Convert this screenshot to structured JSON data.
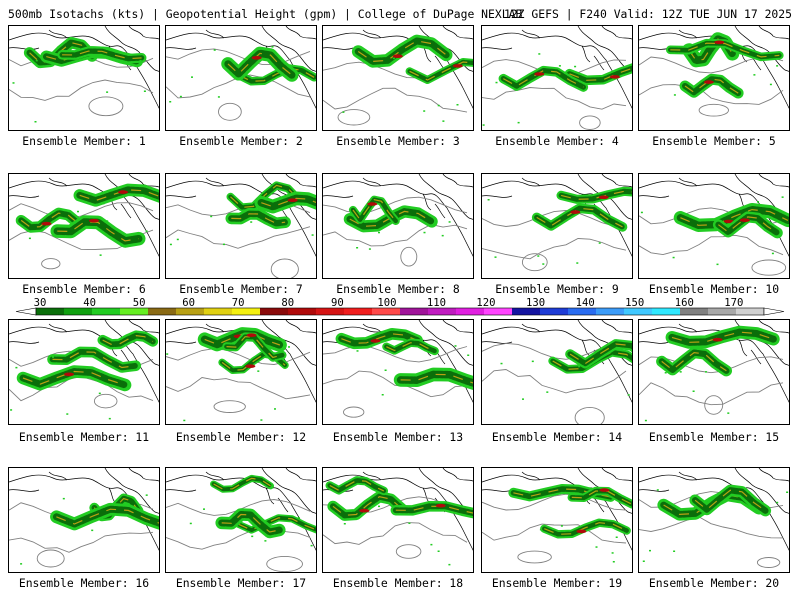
{
  "header": {
    "left": "500mb Isotachs (kts) | Geopotential Height (gpm) | College of DuPage NEXLAB",
    "right": "12Z GEFS | F240 Valid: 12Z TUE JUN 17 2025"
  },
  "members": [
    "Ensemble Member: 1",
    "Ensemble Member: 2",
    "Ensemble Member: 3",
    "Ensemble Member: 4",
    "Ensemble Member: 5",
    "Ensemble Member: 6",
    "Ensemble Member: 7",
    "Ensemble Member: 8",
    "Ensemble Member: 9",
    "Ensemble Member: 10",
    "Ensemble Member: 11",
    "Ensemble Member: 12",
    "Ensemble Member: 13",
    "Ensemble Member: 14",
    "Ensemble Member: 15",
    "Ensemble Member: 16",
    "Ensemble Member: 17",
    "Ensemble Member: 18",
    "Ensemble Member: 19",
    "Ensemble Member: 20"
  ],
  "colorbar": {
    "units": "kts",
    "ticks": [
      "30",
      "40",
      "50",
      "60",
      "70",
      "80",
      "90",
      "100",
      "110",
      "120",
      "130",
      "140",
      "150",
      "160",
      "170"
    ],
    "colors": [
      "#0a6e0a",
      "#10a010",
      "#22cc22",
      "#66ee22",
      "#8a6a14",
      "#b8a014",
      "#e0d012",
      "#f4f010",
      "#8a0a0a",
      "#b00a0a",
      "#d61414",
      "#f01e1e",
      "#ff4a4a",
      "#a0149a",
      "#c01cc0",
      "#e020e0",
      "#ff44ff",
      "#1414a0",
      "#1e3cd6",
      "#2a6cf0",
      "#3c9cf8",
      "#40c8ff",
      "#30e8ff",
      "#808080",
      "#a8a8a8",
      "#d0d0d0"
    ]
  },
  "map_colors": {
    "coastline": "#000000",
    "height_contour": "#808080",
    "jet_light": "#22cc22",
    "jet_dark": "#0a6e0a",
    "jet_core_gold": "#b8a014",
    "jet_core_red": "#b00a0a"
  }
}
